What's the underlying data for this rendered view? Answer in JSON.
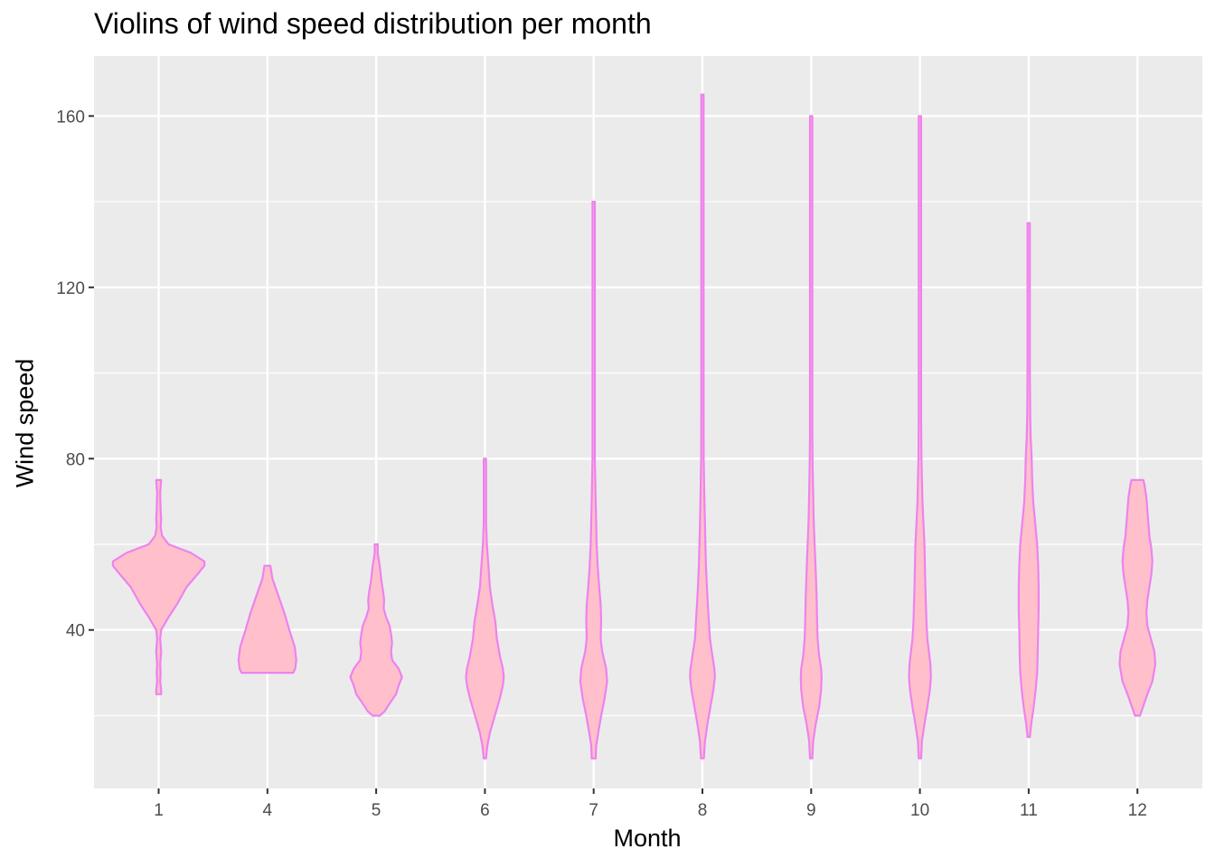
{
  "chart_data": {
    "type": "violin",
    "title": "Violins of wind speed distribution per month",
    "xlabel": "Month",
    "ylabel": "Wind speed",
    "categories": [
      "1",
      "4",
      "5",
      "6",
      "7",
      "8",
      "9",
      "10",
      "11",
      "12"
    ],
    "ylim": [
      3,
      174
    ],
    "yticks": [
      40,
      80,
      120,
      160
    ],
    "yticks_labels": [
      "40",
      "80",
      "120",
      "160"
    ],
    "grid": true,
    "legend": "none",
    "colors": {
      "panel_bg": "#ebebeb",
      "grid": "#ffffff",
      "fill": "#ffc0cb",
      "outline": "#ee82ee"
    },
    "violins": [
      {
        "category": "1",
        "profile": [
          [
            25,
            0.05
          ],
          [
            26,
            0.05
          ],
          [
            28,
            0.03
          ],
          [
            30,
            0.04
          ],
          [
            32,
            0.03
          ],
          [
            35,
            0.05
          ],
          [
            38,
            0.03
          ],
          [
            40,
            0.05
          ],
          [
            43,
            0.2
          ],
          [
            46,
            0.37
          ],
          [
            50,
            0.56
          ],
          [
            53,
            0.78
          ],
          [
            55,
            0.92
          ],
          [
            56,
            0.92
          ],
          [
            58,
            0.65
          ],
          [
            60,
            0.2
          ],
          [
            62,
            0.07
          ],
          [
            64,
            0.04
          ],
          [
            66,
            0.05
          ],
          [
            68,
            0.04
          ],
          [
            72,
            0.03
          ],
          [
            75,
            0.05
          ]
        ]
      },
      {
        "category": "4",
        "profile": [
          [
            30,
            0.52
          ],
          [
            31,
            0.56
          ],
          [
            33,
            0.58
          ],
          [
            36,
            0.55
          ],
          [
            40,
            0.44
          ],
          [
            44,
            0.34
          ],
          [
            48,
            0.22
          ],
          [
            52,
            0.1
          ],
          [
            55,
            0.06
          ]
        ]
      },
      {
        "category": "5",
        "profile": [
          [
            20,
            0.07
          ],
          [
            21,
            0.17
          ],
          [
            23,
            0.28
          ],
          [
            25,
            0.4
          ],
          [
            27,
            0.45
          ],
          [
            29,
            0.52
          ],
          [
            31,
            0.45
          ],
          [
            33,
            0.32
          ],
          [
            35,
            0.3
          ],
          [
            37,
            0.32
          ],
          [
            39,
            0.3
          ],
          [
            41,
            0.27
          ],
          [
            43,
            0.2
          ],
          [
            45,
            0.15
          ],
          [
            47,
            0.16
          ],
          [
            49,
            0.14
          ],
          [
            51,
            0.11
          ],
          [
            53,
            0.09
          ],
          [
            55,
            0.07
          ],
          [
            58,
            0.03
          ],
          [
            60,
            0.03
          ]
        ]
      },
      {
        "category": "6",
        "profile": [
          [
            10,
            0.02
          ],
          [
            13,
            0.05
          ],
          [
            16,
            0.1
          ],
          [
            20,
            0.2
          ],
          [
            24,
            0.3
          ],
          [
            27,
            0.36
          ],
          [
            29,
            0.38
          ],
          [
            31,
            0.36
          ],
          [
            34,
            0.3
          ],
          [
            38,
            0.24
          ],
          [
            42,
            0.21
          ],
          [
            46,
            0.15
          ],
          [
            50,
            0.1
          ],
          [
            55,
            0.07
          ],
          [
            60,
            0.04
          ],
          [
            65,
            0.02
          ],
          [
            70,
            0.01
          ],
          [
            75,
            0.007
          ],
          [
            80,
            0.005
          ]
        ]
      },
      {
        "category": "7",
        "profile": [
          [
            10,
            0.04
          ],
          [
            13,
            0.05
          ],
          [
            16,
            0.09
          ],
          [
            20,
            0.15
          ],
          [
            24,
            0.22
          ],
          [
            28,
            0.27
          ],
          [
            31,
            0.25
          ],
          [
            35,
            0.17
          ],
          [
            38,
            0.14
          ],
          [
            42,
            0.15
          ],
          [
            46,
            0.14
          ],
          [
            50,
            0.11
          ],
          [
            55,
            0.08
          ],
          [
            60,
            0.06
          ],
          [
            65,
            0.05
          ],
          [
            70,
            0.04
          ],
          [
            80,
            0.02
          ],
          [
            90,
            0.01
          ],
          [
            100,
            0.007
          ],
          [
            110,
            0.005
          ],
          [
            120,
            0.005
          ],
          [
            130,
            0.005
          ],
          [
            140,
            0.004
          ]
        ]
      },
      {
        "category": "8",
        "profile": [
          [
            10,
            0.03
          ],
          [
            14,
            0.05
          ],
          [
            18,
            0.1
          ],
          [
            22,
            0.16
          ],
          [
            26,
            0.22
          ],
          [
            29,
            0.25
          ],
          [
            31,
            0.24
          ],
          [
            34,
            0.2
          ],
          [
            38,
            0.15
          ],
          [
            42,
            0.13
          ],
          [
            46,
            0.11
          ],
          [
            50,
            0.09
          ],
          [
            55,
            0.07
          ],
          [
            60,
            0.06
          ],
          [
            65,
            0.05
          ],
          [
            70,
            0.04
          ],
          [
            80,
            0.025
          ],
          [
            90,
            0.015
          ],
          [
            100,
            0.01
          ],
          [
            110,
            0.007
          ],
          [
            120,
            0.006
          ],
          [
            130,
            0.005
          ],
          [
            140,
            0.004
          ],
          [
            150,
            0.004
          ],
          [
            160,
            0.003
          ],
          [
            165,
            0.003
          ]
        ]
      },
      {
        "category": "9",
        "profile": [
          [
            10,
            0.01
          ],
          [
            14,
            0.04
          ],
          [
            18,
            0.09
          ],
          [
            22,
            0.16
          ],
          [
            26,
            0.2
          ],
          [
            29,
            0.21
          ],
          [
            31,
            0.2
          ],
          [
            34,
            0.16
          ],
          [
            38,
            0.13
          ],
          [
            42,
            0.12
          ],
          [
            48,
            0.11
          ],
          [
            54,
            0.09
          ],
          [
            60,
            0.07
          ],
          [
            66,
            0.05
          ],
          [
            72,
            0.04
          ],
          [
            78,
            0.03
          ],
          [
            85,
            0.02
          ],
          [
            92,
            0.015
          ],
          [
            100,
            0.01
          ],
          [
            110,
            0.007
          ],
          [
            120,
            0.006
          ],
          [
            130,
            0.005
          ],
          [
            140,
            0.005
          ],
          [
            150,
            0.004
          ],
          [
            160,
            0.004
          ]
        ]
      },
      {
        "category": "10",
        "profile": [
          [
            10,
            0.01
          ],
          [
            14,
            0.04
          ],
          [
            18,
            0.09
          ],
          [
            22,
            0.15
          ],
          [
            26,
            0.2
          ],
          [
            29,
            0.22
          ],
          [
            32,
            0.21
          ],
          [
            35,
            0.18
          ],
          [
            38,
            0.15
          ],
          [
            42,
            0.13
          ],
          [
            46,
            0.12
          ],
          [
            50,
            0.11
          ],
          [
            55,
            0.1
          ],
          [
            60,
            0.09
          ],
          [
            65,
            0.07
          ],
          [
            70,
            0.05
          ],
          [
            75,
            0.04
          ],
          [
            80,
            0.03
          ],
          [
            90,
            0.02
          ],
          [
            100,
            0.01
          ],
          [
            110,
            0.007
          ],
          [
            120,
            0.006
          ],
          [
            130,
            0.005
          ],
          [
            140,
            0.005
          ],
          [
            150,
            0.004
          ],
          [
            160,
            0.004
          ]
        ]
      },
      {
        "category": "11",
        "profile": [
          [
            15,
            0.02
          ],
          [
            18,
            0.05
          ],
          [
            22,
            0.1
          ],
          [
            26,
            0.14
          ],
          [
            30,
            0.17
          ],
          [
            34,
            0.18
          ],
          [
            40,
            0.19
          ],
          [
            45,
            0.2
          ],
          [
            50,
            0.2
          ],
          [
            55,
            0.19
          ],
          [
            60,
            0.17
          ],
          [
            65,
            0.13
          ],
          [
            70,
            0.09
          ],
          [
            75,
            0.07
          ],
          [
            80,
            0.06
          ],
          [
            85,
            0.04
          ],
          [
            90,
            0.03
          ],
          [
            100,
            0.02
          ],
          [
            110,
            0.015
          ],
          [
            120,
            0.01
          ],
          [
            130,
            0.007
          ],
          [
            135,
            0.005
          ]
        ]
      },
      {
        "category": "12",
        "profile": [
          [
            20,
            0.05
          ],
          [
            22,
            0.11
          ],
          [
            25,
            0.2
          ],
          [
            28,
            0.3
          ],
          [
            32,
            0.36
          ],
          [
            35,
            0.34
          ],
          [
            38,
            0.27
          ],
          [
            41,
            0.2
          ],
          [
            44,
            0.18
          ],
          [
            47,
            0.2
          ],
          [
            50,
            0.24
          ],
          [
            53,
            0.28
          ],
          [
            56,
            0.3
          ],
          [
            59,
            0.28
          ],
          [
            62,
            0.24
          ],
          [
            65,
            0.22
          ],
          [
            68,
            0.2
          ],
          [
            71,
            0.18
          ],
          [
            74,
            0.14
          ],
          [
            75,
            0.12
          ]
        ]
      }
    ]
  }
}
